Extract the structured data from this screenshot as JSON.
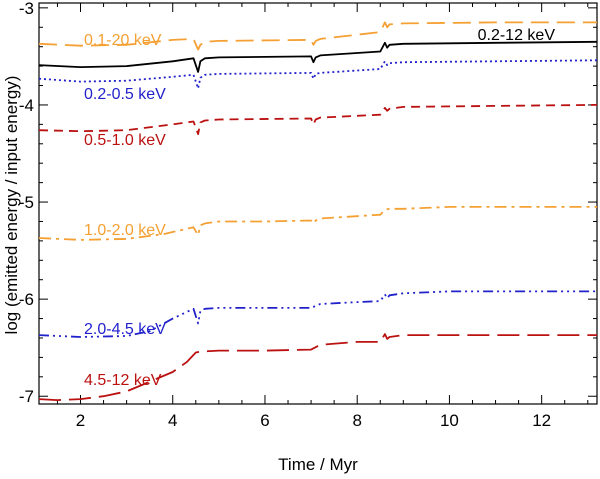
{
  "chart_data": {
    "type": "line",
    "title": "",
    "xlabel": "Time / Myr",
    "ylabel": "log (emitted energy / input energy)",
    "xlim": [
      1.1,
      13.2
    ],
    "ylim": [
      -7.08,
      -2.95
    ],
    "xticks": [
      2,
      4,
      6,
      8,
      10,
      12
    ],
    "xtick_labels": [
      "2",
      "4",
      "6",
      "8",
      "10",
      "12"
    ],
    "yticks": [
      -3,
      -4,
      -5,
      -6,
      -7
    ],
    "ytick_labels": [
      "-3",
      "-4",
      "-5",
      "-6",
      "-7"
    ],
    "grid": false,
    "series": [
      {
        "name": "0.1-20 keV",
        "color": "#F5A033",
        "dash": "18,8",
        "x": [
          1.1,
          2.0,
          3.0,
          4.0,
          4.45,
          4.55,
          4.6,
          4.7,
          5.0,
          7.0,
          7.05,
          7.1,
          7.2,
          8.5,
          8.6,
          8.65,
          8.7,
          9.0,
          11.0,
          13.2
        ],
        "values": [
          -3.37,
          -3.39,
          -3.38,
          -3.33,
          -3.32,
          -3.43,
          -3.38,
          -3.35,
          -3.34,
          -3.33,
          -3.38,
          -3.34,
          -3.32,
          -3.25,
          -3.15,
          -3.2,
          -3.17,
          -3.16,
          -3.15,
          -3.15
        ]
      },
      {
        "name": "0.2-12 keV",
        "color": "#000000",
        "dash": "",
        "x": [
          1.1,
          2.0,
          3.0,
          4.0,
          4.45,
          4.55,
          4.6,
          4.7,
          5.0,
          7.0,
          7.05,
          7.1,
          7.2,
          8.5,
          8.6,
          8.65,
          8.7,
          9.0,
          11.0,
          13.2
        ],
        "values": [
          -3.59,
          -3.61,
          -3.6,
          -3.55,
          -3.52,
          -3.66,
          -3.55,
          -3.52,
          -3.51,
          -3.5,
          -3.56,
          -3.51,
          -3.49,
          -3.45,
          -3.36,
          -3.41,
          -3.38,
          -3.37,
          -3.36,
          -3.35
        ]
      },
      {
        "name": "0.2-0.5 keV",
        "color": "#2222CC",
        "dash": "2,3",
        "x": [
          1.1,
          2.0,
          3.0,
          4.0,
          4.45,
          4.55,
          4.6,
          4.7,
          5.0,
          7.0,
          7.05,
          7.1,
          7.2,
          8.5,
          8.6,
          8.65,
          8.7,
          9.0,
          11.0,
          13.2
        ],
        "values": [
          -3.73,
          -3.76,
          -3.75,
          -3.71,
          -3.69,
          -3.83,
          -3.72,
          -3.69,
          -3.68,
          -3.67,
          -3.73,
          -3.68,
          -3.67,
          -3.63,
          -3.55,
          -3.59,
          -3.57,
          -3.56,
          -3.55,
          -3.54
        ]
      },
      {
        "name": "0.5-1.0 keV",
        "color": "#BB1111",
        "dash": "9,6",
        "x": [
          1.1,
          2.0,
          3.0,
          4.0,
          4.45,
          4.55,
          4.6,
          4.7,
          5.0,
          7.0,
          7.05,
          7.1,
          7.2,
          8.5,
          8.6,
          8.65,
          8.7,
          9.0,
          11.0,
          13.2
        ],
        "values": [
          -4.26,
          -4.27,
          -4.26,
          -4.2,
          -4.17,
          -4.3,
          -4.18,
          -4.16,
          -4.15,
          -4.14,
          -4.2,
          -4.15,
          -4.13,
          -4.1,
          -4.03,
          -4.06,
          -4.04,
          -4.02,
          -4.01,
          -4.0
        ]
      },
      {
        "name": "1.0-2.0 keV",
        "color": "#F5A033",
        "dash": "12,5,3,5",
        "x": [
          1.1,
          2.0,
          3.0,
          3.8,
          4.45,
          4.55,
          4.6,
          4.7,
          5.0,
          6.0,
          7.0,
          7.05,
          7.1,
          7.2,
          8.5,
          8.6,
          8.7,
          9.0,
          10.0,
          11.0,
          13.2
        ],
        "values": [
          -5.37,
          -5.39,
          -5.38,
          -5.33,
          -5.26,
          -5.34,
          -5.24,
          -5.22,
          -5.2,
          -5.2,
          -5.19,
          -5.22,
          -5.19,
          -5.17,
          -5.13,
          -5.08,
          -5.07,
          -5.07,
          -5.05,
          -5.05,
          -5.05
        ]
      },
      {
        "name": "2.0-4.5 keV",
        "color": "#2222CC",
        "dash": "10,4,2,4,2,4,2,4",
        "x": [
          1.1,
          2.0,
          3.0,
          3.5,
          4.0,
          4.45,
          4.55,
          4.6,
          4.7,
          5.0,
          6.0,
          7.0,
          7.2,
          8.0,
          8.5,
          8.6,
          8.65,
          8.7,
          9.0,
          10.0,
          11.0,
          13.2
        ],
        "values": [
          -6.37,
          -6.39,
          -6.38,
          -6.33,
          -6.2,
          -6.1,
          -6.25,
          -6.12,
          -6.1,
          -6.09,
          -6.09,
          -6.09,
          -6.05,
          -6.03,
          -6.02,
          -5.95,
          -5.99,
          -5.96,
          -5.94,
          -5.92,
          -5.92,
          -5.92
        ]
      },
      {
        "name": "4.5-12 keV",
        "color": "#BB1111",
        "dash": "22,8",
        "x": [
          1.1,
          1.5,
          2.0,
          2.5,
          3.0,
          3.5,
          4.0,
          4.3,
          4.5,
          4.6,
          5.0,
          6.0,
          7.0,
          7.2,
          8.0,
          8.5,
          8.6,
          8.65,
          8.7,
          9.0,
          11.0,
          13.2
        ],
        "values": [
          -7.03,
          -7.04,
          -7.03,
          -7.0,
          -6.95,
          -6.85,
          -6.75,
          -6.65,
          -6.55,
          -6.54,
          -6.53,
          -6.53,
          -6.52,
          -6.47,
          -6.44,
          -6.44,
          -6.36,
          -6.41,
          -6.39,
          -6.37,
          -6.37,
          -6.37
        ]
      }
    ],
    "annotations": [
      {
        "text": "0.1-20 keV",
        "series": "0.1-20 keV",
        "color": "#F5A033"
      },
      {
        "text": "0.2-12 keV",
        "series": "0.2-12 keV",
        "color": "#000000"
      },
      {
        "text": "0.2-0.5 keV",
        "series": "0.2-0.5 keV",
        "color": "#2222CC"
      },
      {
        "text": "0.5-1.0 keV",
        "series": "0.5-1.0 keV",
        "color": "#BB1111"
      },
      {
        "text": "1.0-2.0 keV",
        "series": "1.0-2.0 keV",
        "color": "#F5A033"
      },
      {
        "text": "2.0-4.5 keV",
        "series": "2.0-4.5 keV",
        "color": "#2222CC"
      },
      {
        "text": "4.5-12 keV",
        "series": "4.5-12 keV",
        "color": "#BB1111"
      }
    ]
  }
}
